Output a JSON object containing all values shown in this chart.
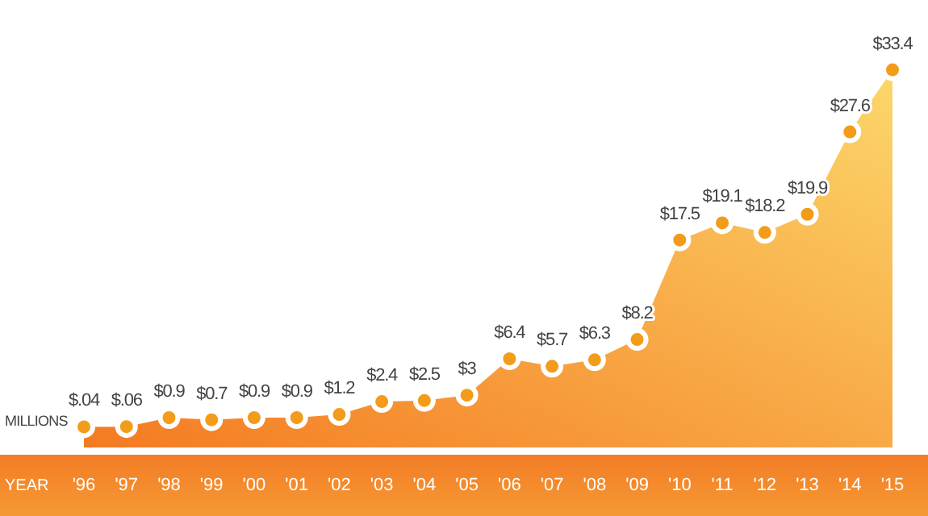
{
  "chart_data": {
    "type": "area",
    "xlabel": "YEAR",
    "ylabel": "MILLIONS",
    "categories": [
      "'96",
      "'97",
      "'98",
      "'99",
      "'00",
      "'01",
      "'02",
      "'03",
      "'04",
      "'05",
      "'06",
      "'07",
      "'08",
      "'09",
      "'10",
      "'11",
      "'12",
      "'13",
      "'14",
      "'15"
    ],
    "series": [
      {
        "color": "#f39c1a",
        "values": [
          0.04,
          0.06,
          0.9,
          0.7,
          0.9,
          0.9,
          1.2,
          2.4,
          2.5,
          3,
          6.4,
          5.7,
          6.3,
          8.2,
          17.5,
          19.1,
          18.2,
          19.9,
          27.6,
          33.4
        ],
        "value_labels": [
          "$.04",
          "$.06",
          "$0.9",
          "$0.7",
          "$0.9",
          "$0.9",
          "$1.2",
          "$2.4",
          "$2.5",
          "$3",
          "$6.4",
          "$5.7",
          "$6.3",
          "$8.2",
          "$17.5",
          "$19.1",
          "$18.2",
          "$19.9",
          "$27.6",
          "$33.4"
        ]
      }
    ],
    "marker": "circle",
    "legend": false,
    "grid": false
  }
}
